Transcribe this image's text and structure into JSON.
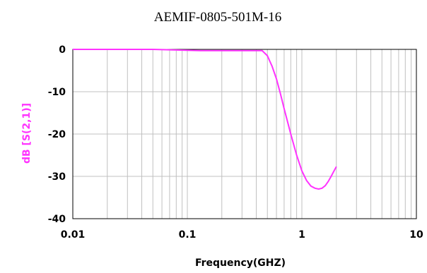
{
  "chart_data": {
    "type": "line",
    "title": "AEMIF-0805-501M-16",
    "xlabel": "Frequency(GHZ)",
    "ylabel": "dB [S(2,1)]",
    "xscale": "log",
    "xlim": [
      0.01,
      10
    ],
    "ylim": [
      -40,
      0
    ],
    "xticks": [
      0.01,
      0.1,
      1,
      10
    ],
    "xtick_labels": [
      "0.01",
      "0.1",
      "1",
      "10"
    ],
    "yticks": [
      0,
      -10,
      -20,
      -30,
      -40
    ],
    "ytick_labels": [
      "0",
      "-10",
      "-20",
      "-30",
      "-40"
    ],
    "grid": true,
    "colors": {
      "line": "#ff33ff",
      "ylabel": "#ff33ff",
      "grid": "#c0c0c0",
      "frame": "#000000"
    },
    "series": [
      {
        "x": [
          0.01,
          0.05,
          0.13,
          0.3,
          0.45,
          0.5,
          0.55,
          0.6,
          0.65,
          0.7,
          0.8,
          0.9,
          1.0,
          1.1,
          1.2,
          1.3,
          1.4,
          1.5,
          1.6,
          1.7,
          1.8,
          1.9,
          2.0
        ],
        "y": [
          0,
          0,
          -0.3,
          -0.3,
          -0.3,
          -1.5,
          -4.0,
          -7.0,
          -10.5,
          -14.0,
          -20.0,
          -25.0,
          -28.7,
          -31.0,
          -32.3,
          -32.8,
          -33.0,
          -32.8,
          -32.2,
          -31.2,
          -30.0,
          -28.8,
          -27.7
        ]
      }
    ]
  }
}
